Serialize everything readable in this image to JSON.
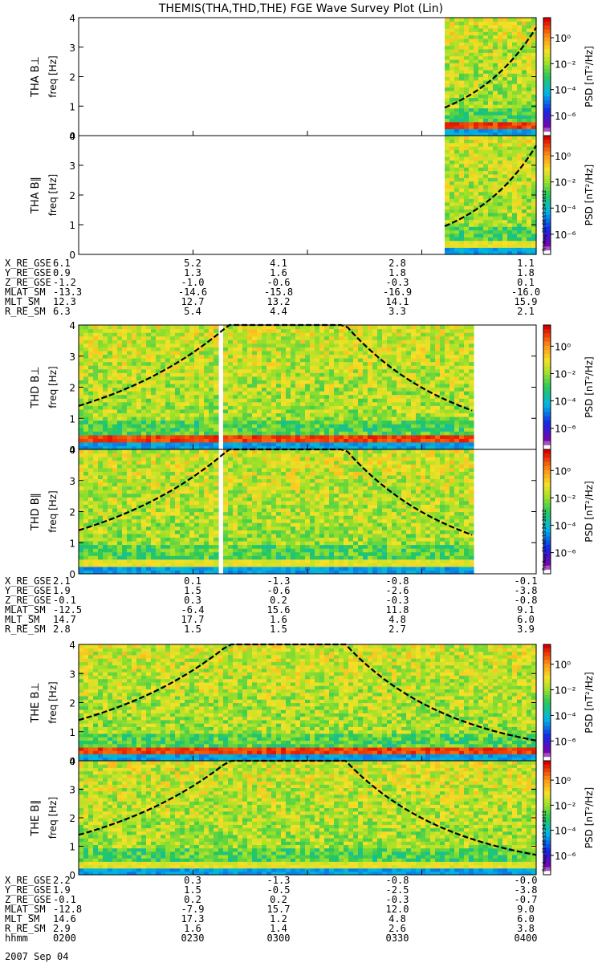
{
  "title": "THEMIS(THA,THD,THE) FGE Wave Survey Plot (Lin)",
  "colorbar": {
    "ticks": [
      "10⁰",
      "10⁻²",
      "10⁻⁴",
      "10⁻⁶"
    ],
    "label": "PSD [nT²/Hz]"
  },
  "stamp": "Fri Aug 31 06:15:24 2012",
  "chart_data": {
    "type": "heatmap",
    "x_tick_labels": [
      "0200",
      "0230",
      "0300",
      "0330",
      "0400"
    ],
    "date": "2007 Sep 04",
    "ylim": [
      0,
      4
    ],
    "y_ticks": [
      "0",
      "1",
      "2",
      "3",
      "4"
    ],
    "ylabel_unit": "freq [Hz]",
    "panels": [
      {
        "probe": "THA",
        "label": "THA B⊥",
        "data_start_fraction": 0.8
      },
      {
        "probe": "THA",
        "label": "THA B∥",
        "data_start_fraction": 0.8
      },
      {
        "probe": "THD",
        "label": "THD B⊥",
        "data_end_fraction": 0.86,
        "gap": [
          0.3,
          0.32
        ]
      },
      {
        "probe": "THD",
        "label": "THD B∥",
        "data_end_fraction": 0.86,
        "gap": [
          0.3,
          0.32
        ]
      },
      {
        "probe": "THE",
        "label": "THE B⊥"
      },
      {
        "probe": "THE",
        "label": "THE B∥"
      }
    ],
    "ephemeris": [
      {
        "probe": "THA",
        "rows": [
          {
            "name": "X_RE_GSE",
            "values": [
              "6.1",
              "5.2",
              "4.1",
              "2.8",
              "1.1"
            ]
          },
          {
            "name": "Y_RE_GSE",
            "values": [
              "0.9",
              "1.3",
              "1.6",
              "1.8",
              "1.8"
            ]
          },
          {
            "name": "Z_RE_GSE",
            "values": [
              "-1.2",
              "-1.0",
              "-0.6",
              "-0.3",
              "0.1"
            ]
          },
          {
            "name": "MLAT_SM",
            "values": [
              "-13.3",
              "-14.6",
              "-15.8",
              "-16.9",
              "-16.0"
            ]
          },
          {
            "name": "MLT_SM",
            "values": [
              "12.3",
              "12.7",
              "13.2",
              "14.1",
              "15.9"
            ]
          },
          {
            "name": "R_RE_SM",
            "values": [
              "6.3",
              "5.4",
              "4.4",
              "3.3",
              "2.1"
            ]
          }
        ]
      },
      {
        "probe": "THD",
        "rows": [
          {
            "name": "X_RE_GSE",
            "values": [
              "2.1",
              "0.1",
              "-1.3",
              "-0.8",
              "-0.1"
            ]
          },
          {
            "name": "Y_RE_GSE",
            "values": [
              "1.9",
              "1.5",
              "-0.6",
              "-2.6",
              "-3.8"
            ]
          },
          {
            "name": "Z_RE_GSE",
            "values": [
              "-0.1",
              "0.3",
              "0.2",
              "-0.3",
              "-0.8"
            ]
          },
          {
            "name": "MLAT_SM",
            "values": [
              "-12.5",
              "-6.4",
              "15.6",
              "11.8",
              "9.1"
            ]
          },
          {
            "name": "MLT_SM",
            "values": [
              "14.7",
              "17.7",
              "1.6",
              "4.8",
              "6.0"
            ]
          },
          {
            "name": "R_RE_SM",
            "values": [
              "2.8",
              "1.5",
              "1.5",
              "2.7",
              "3.9"
            ]
          }
        ]
      },
      {
        "probe": "THE",
        "rows": [
          {
            "name": "X_RE_GSE",
            "values": [
              "2.2",
              "0.3",
              "-1.3",
              "-0.8",
              "-0.0"
            ]
          },
          {
            "name": "Y_RE_GSE",
            "values": [
              "1.9",
              "1.5",
              "-0.5",
              "-2.5",
              "-3.8"
            ]
          },
          {
            "name": "Z_RE_GSE",
            "values": [
              "-0.1",
              "0.2",
              "0.2",
              "-0.3",
              "-0.7"
            ]
          },
          {
            "name": "MLAT_SM",
            "values": [
              "-12.8",
              "-7.9",
              "15.7",
              "12.0",
              "9.0"
            ]
          },
          {
            "name": "MLT_SM",
            "values": [
              "14.6",
              "17.3",
              "1.2",
              "4.8",
              "6.0"
            ]
          },
          {
            "name": "R_RE_SM",
            "values": [
              "2.9",
              "1.6",
              "1.4",
              "2.6",
              "3.8"
            ]
          },
          {
            "name": "hhmm",
            "values": [
              "0200",
              "0230",
              "0300",
              "0330",
              "0400"
            ]
          }
        ]
      }
    ]
  }
}
